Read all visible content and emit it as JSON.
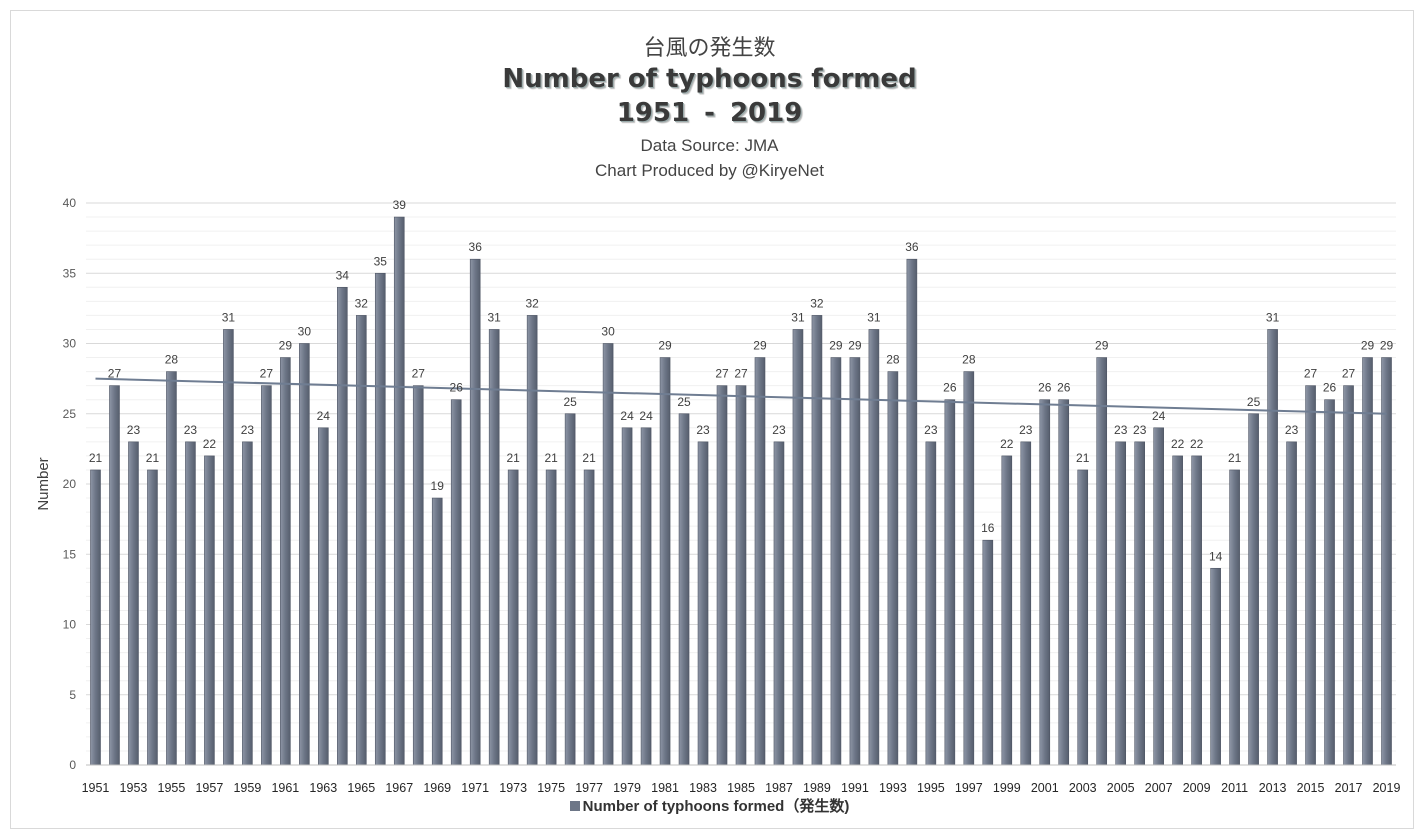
{
  "chart_data": {
    "type": "bar",
    "title_jp": "台風の発生数",
    "title": "Number of typhoons formed",
    "years_range": "1951  -  2019",
    "source": "Data Source: JMA",
    "credit": "Chart Produced by @KiryeNet",
    "ylabel": "Number",
    "ylim": [
      0,
      40
    ],
    "yticks": [
      0,
      5,
      10,
      15,
      20,
      25,
      30,
      35,
      40
    ],
    "grid": true,
    "legend": {
      "label": "Number of typhoons formed（発生数)",
      "placement": "bottom"
    },
    "categories": [
      "1951",
      "1952",
      "1953",
      "1954",
      "1955",
      "1956",
      "1957",
      "1958",
      "1959",
      "1960",
      "1961",
      "1962",
      "1963",
      "1964",
      "1965",
      "1966",
      "1967",
      "1968",
      "1969",
      "1970",
      "1971",
      "1972",
      "1973",
      "1974",
      "1975",
      "1976",
      "1977",
      "1978",
      "1979",
      "1980",
      "1981",
      "1982",
      "1983",
      "1984",
      "1985",
      "1986",
      "1987",
      "1988",
      "1989",
      "1990",
      "1991",
      "1992",
      "1993",
      "1994",
      "1995",
      "1996",
      "1997",
      "1998",
      "1999",
      "2000",
      "2001",
      "2002",
      "2003",
      "2004",
      "2005",
      "2006",
      "2007",
      "2008",
      "2009",
      "2010",
      "2011",
      "2012",
      "2013",
      "2014",
      "2015",
      "2016",
      "2017",
      "2018",
      "2019"
    ],
    "tick_labels": [
      "1951",
      "1953",
      "1955",
      "1957",
      "1959",
      "1961",
      "1963",
      "1965",
      "1967",
      "1969",
      "1971",
      "1973",
      "1975",
      "1977",
      "1979",
      "1981",
      "1983",
      "1985",
      "1987",
      "1989",
      "1991",
      "1993",
      "1995",
      "1997",
      "1999",
      "2001",
      "2003",
      "2005",
      "2007",
      "2009",
      "2011",
      "2013",
      "2015",
      "2017",
      "2019"
    ],
    "series": [
      {
        "name": "Number of typhoons formed（発生数)",
        "values": [
          21,
          27,
          23,
          21,
          28,
          23,
          22,
          31,
          23,
          27,
          29,
          30,
          24,
          34,
          32,
          35,
          39,
          27,
          19,
          26,
          36,
          31,
          21,
          32,
          21,
          25,
          21,
          30,
          24,
          24,
          29,
          25,
          23,
          27,
          27,
          29,
          23,
          31,
          32,
          29,
          29,
          31,
          28,
          36,
          23,
          26,
          28,
          16,
          22,
          23,
          26,
          26,
          21,
          29,
          23,
          23,
          24,
          22,
          22,
          14,
          21,
          25,
          31,
          23,
          27,
          26,
          27,
          29,
          29
        ]
      }
    ],
    "trendline": {
      "start": 27.5,
      "end": 25.0
    },
    "colors": {
      "bar": "#6d7687",
      "bar_light": "#8e96a6",
      "trend": "#6f7d92",
      "grid": "#e4e4e4"
    }
  }
}
